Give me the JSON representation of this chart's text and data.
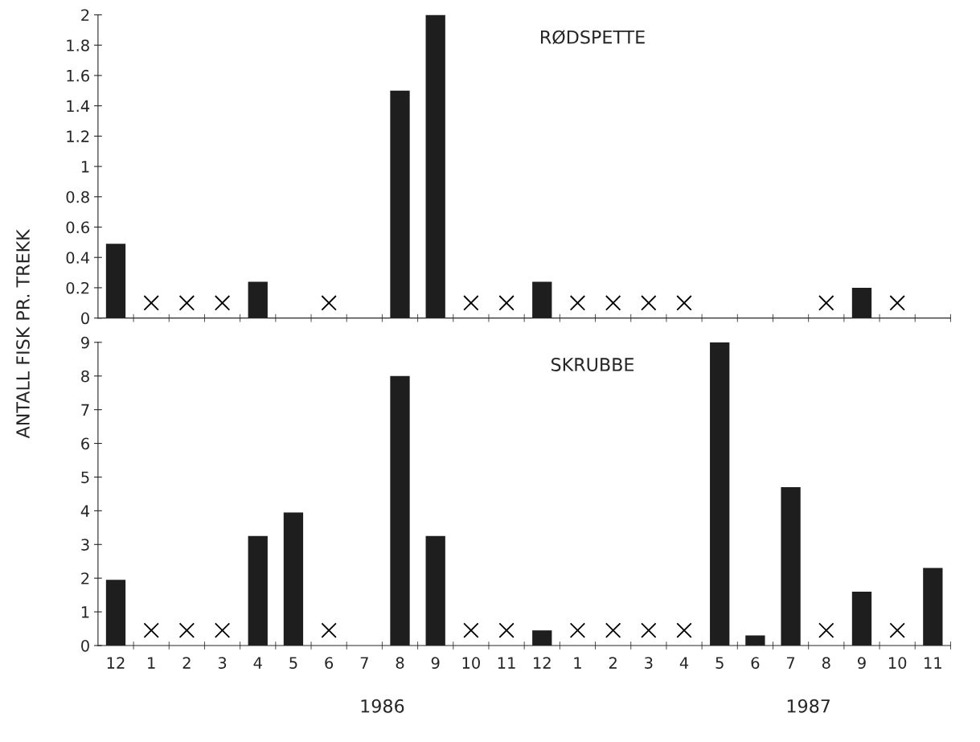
{
  "chart_data": [
    {
      "type": "bar",
      "title": "RØDSPETTE",
      "ylabel": "ANTALL FISK PR. TREKK",
      "categories": [
        "12",
        "1",
        "2",
        "3",
        "4",
        "5",
        "6",
        "7",
        "8",
        "9",
        "10",
        "11",
        "12",
        "1",
        "2",
        "3",
        "4",
        "5",
        "6",
        "7",
        "8",
        "9",
        "10",
        "11"
      ],
      "series": [
        {
          "color": "#1e1e1e",
          "values": [
            0.49,
            null,
            null,
            null,
            0.24,
            null,
            null,
            null,
            1.5,
            2.0,
            null,
            null,
            0.24,
            null,
            null,
            null,
            null,
            null,
            null,
            null,
            null,
            0.2,
            null,
            null
          ]
        },
        {
          "type": "scatter",
          "color": "#000000",
          "values": [
            null,
            0.1,
            0.1,
            0.1,
            null,
            null,
            0.1,
            null,
            null,
            null,
            0.1,
            0.1,
            null,
            0.1,
            0.1,
            0.1,
            0.1,
            null,
            null,
            null,
            0.1,
            null,
            0.1,
            null
          ]
        }
      ],
      "marker": "cross",
      "ylim": [
        0,
        2
      ],
      "yticks": [
        0,
        0.2,
        0.4,
        0.6,
        0.8,
        1,
        1.2,
        1.4,
        1.6,
        1.8,
        2
      ],
      "tick_labels": "y",
      "grid": false,
      "legend": false
    },
    {
      "type": "bar",
      "title": "SKRUBBE",
      "categories": [
        "12",
        "1",
        "2",
        "3",
        "4",
        "5",
        "6",
        "7",
        "8",
        "9",
        "10",
        "11",
        "12",
        "1",
        "2",
        "3",
        "4",
        "5",
        "6",
        "7",
        "8",
        "9",
        "10",
        "11"
      ],
      "series": [
        {
          "color": "#1e1e1e",
          "values": [
            1.95,
            null,
            null,
            null,
            3.25,
            3.95,
            null,
            null,
            8.0,
            3.25,
            null,
            null,
            0.45,
            null,
            null,
            null,
            null,
            9.0,
            0.3,
            4.7,
            null,
            1.6,
            null,
            2.3
          ]
        },
        {
          "type": "scatter",
          "color": "#000000",
          "values": [
            null,
            0.45,
            0.45,
            0.45,
            null,
            null,
            0.45,
            null,
            null,
            null,
            0.45,
            0.45,
            null,
            0.45,
            0.45,
            0.45,
            0.45,
            null,
            null,
            null,
            0.45,
            null,
            0.45,
            null
          ]
        }
      ],
      "marker": "cross",
      "ylim": [
        0,
        9
      ],
      "yticks": [
        0,
        1,
        2,
        3,
        4,
        5,
        6,
        7,
        8,
        9
      ],
      "grid": false,
      "legend": false,
      "annotations": [
        "1986",
        "1987"
      ]
    }
  ]
}
